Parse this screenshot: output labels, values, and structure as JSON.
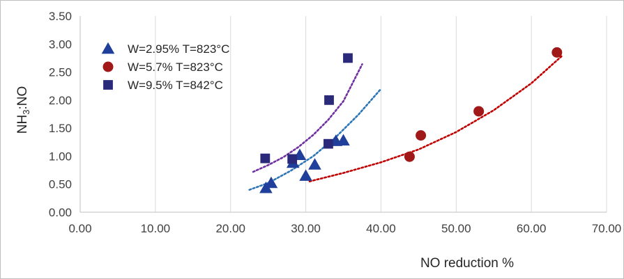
{
  "chart_data": {
    "type": "scatter",
    "xlabel": "NO reduction %",
    "ylabel_main": "NH",
    "ylabel_sub": "3",
    "ylabel_tail": ":NO",
    "xlim": [
      0,
      70
    ],
    "ylim": [
      0,
      3.5
    ],
    "x_ticks": [
      "0.00",
      "10.00",
      "20.00",
      "30.00",
      "40.00",
      "50.00",
      "60.00",
      "70.00"
    ],
    "y_ticks": [
      "0.00",
      "0.50",
      "1.00",
      "1.50",
      "2.00",
      "2.50",
      "3.00",
      "3.50"
    ],
    "grid": "vertical",
    "legend_position": "top-left",
    "series": [
      {
        "name": "W=2.95%  T=823°C",
        "marker": "triangle",
        "color": "#1f3f9a",
        "trend_color": "#2e75b6",
        "x": [
          24.7,
          25.4,
          28.3,
          29.2,
          30.0,
          31.2,
          34.0,
          35.0
        ],
        "y": [
          0.43,
          0.52,
          0.88,
          1.02,
          0.65,
          0.85,
          1.27,
          1.28
        ],
        "trend": [
          [
            22.5,
            0.4
          ],
          [
            25,
            0.52
          ],
          [
            28,
            0.74
          ],
          [
            31,
            1.0
          ],
          [
            34,
            1.34
          ],
          [
            37,
            1.74
          ],
          [
            40,
            2.2
          ]
        ]
      },
      {
        "name": "W=5.7%  T=823°C",
        "marker": "circle",
        "color": "#a01818",
        "trend_color": "#c00000",
        "x": [
          43.8,
          45.3,
          53.0,
          63.4
        ],
        "y": [
          0.99,
          1.37,
          1.8,
          2.85
        ],
        "trend": [
          [
            30.5,
            0.55
          ],
          [
            35,
            0.7
          ],
          [
            40,
            0.89
          ],
          [
            45,
            1.12
          ],
          [
            50,
            1.43
          ],
          [
            55,
            1.82
          ],
          [
            60,
            2.3
          ],
          [
            64,
            2.78
          ]
        ]
      },
      {
        "name": "W=9.5%  T=842°C",
        "marker": "square",
        "color": "#2b2a7a",
        "trend_color": "#7030a0",
        "x": [
          24.6,
          28.2,
          33.0,
          33.1,
          35.6
        ],
        "y": [
          0.96,
          0.95,
          1.22,
          2.0,
          2.75
        ],
        "trend": [
          [
            23.0,
            0.72
          ],
          [
            25,
            0.84
          ],
          [
            27,
            0.98
          ],
          [
            29,
            1.16
          ],
          [
            31,
            1.38
          ],
          [
            33,
            1.65
          ],
          [
            35,
            1.98
          ],
          [
            37.5,
            2.64
          ]
        ]
      }
    ]
  }
}
